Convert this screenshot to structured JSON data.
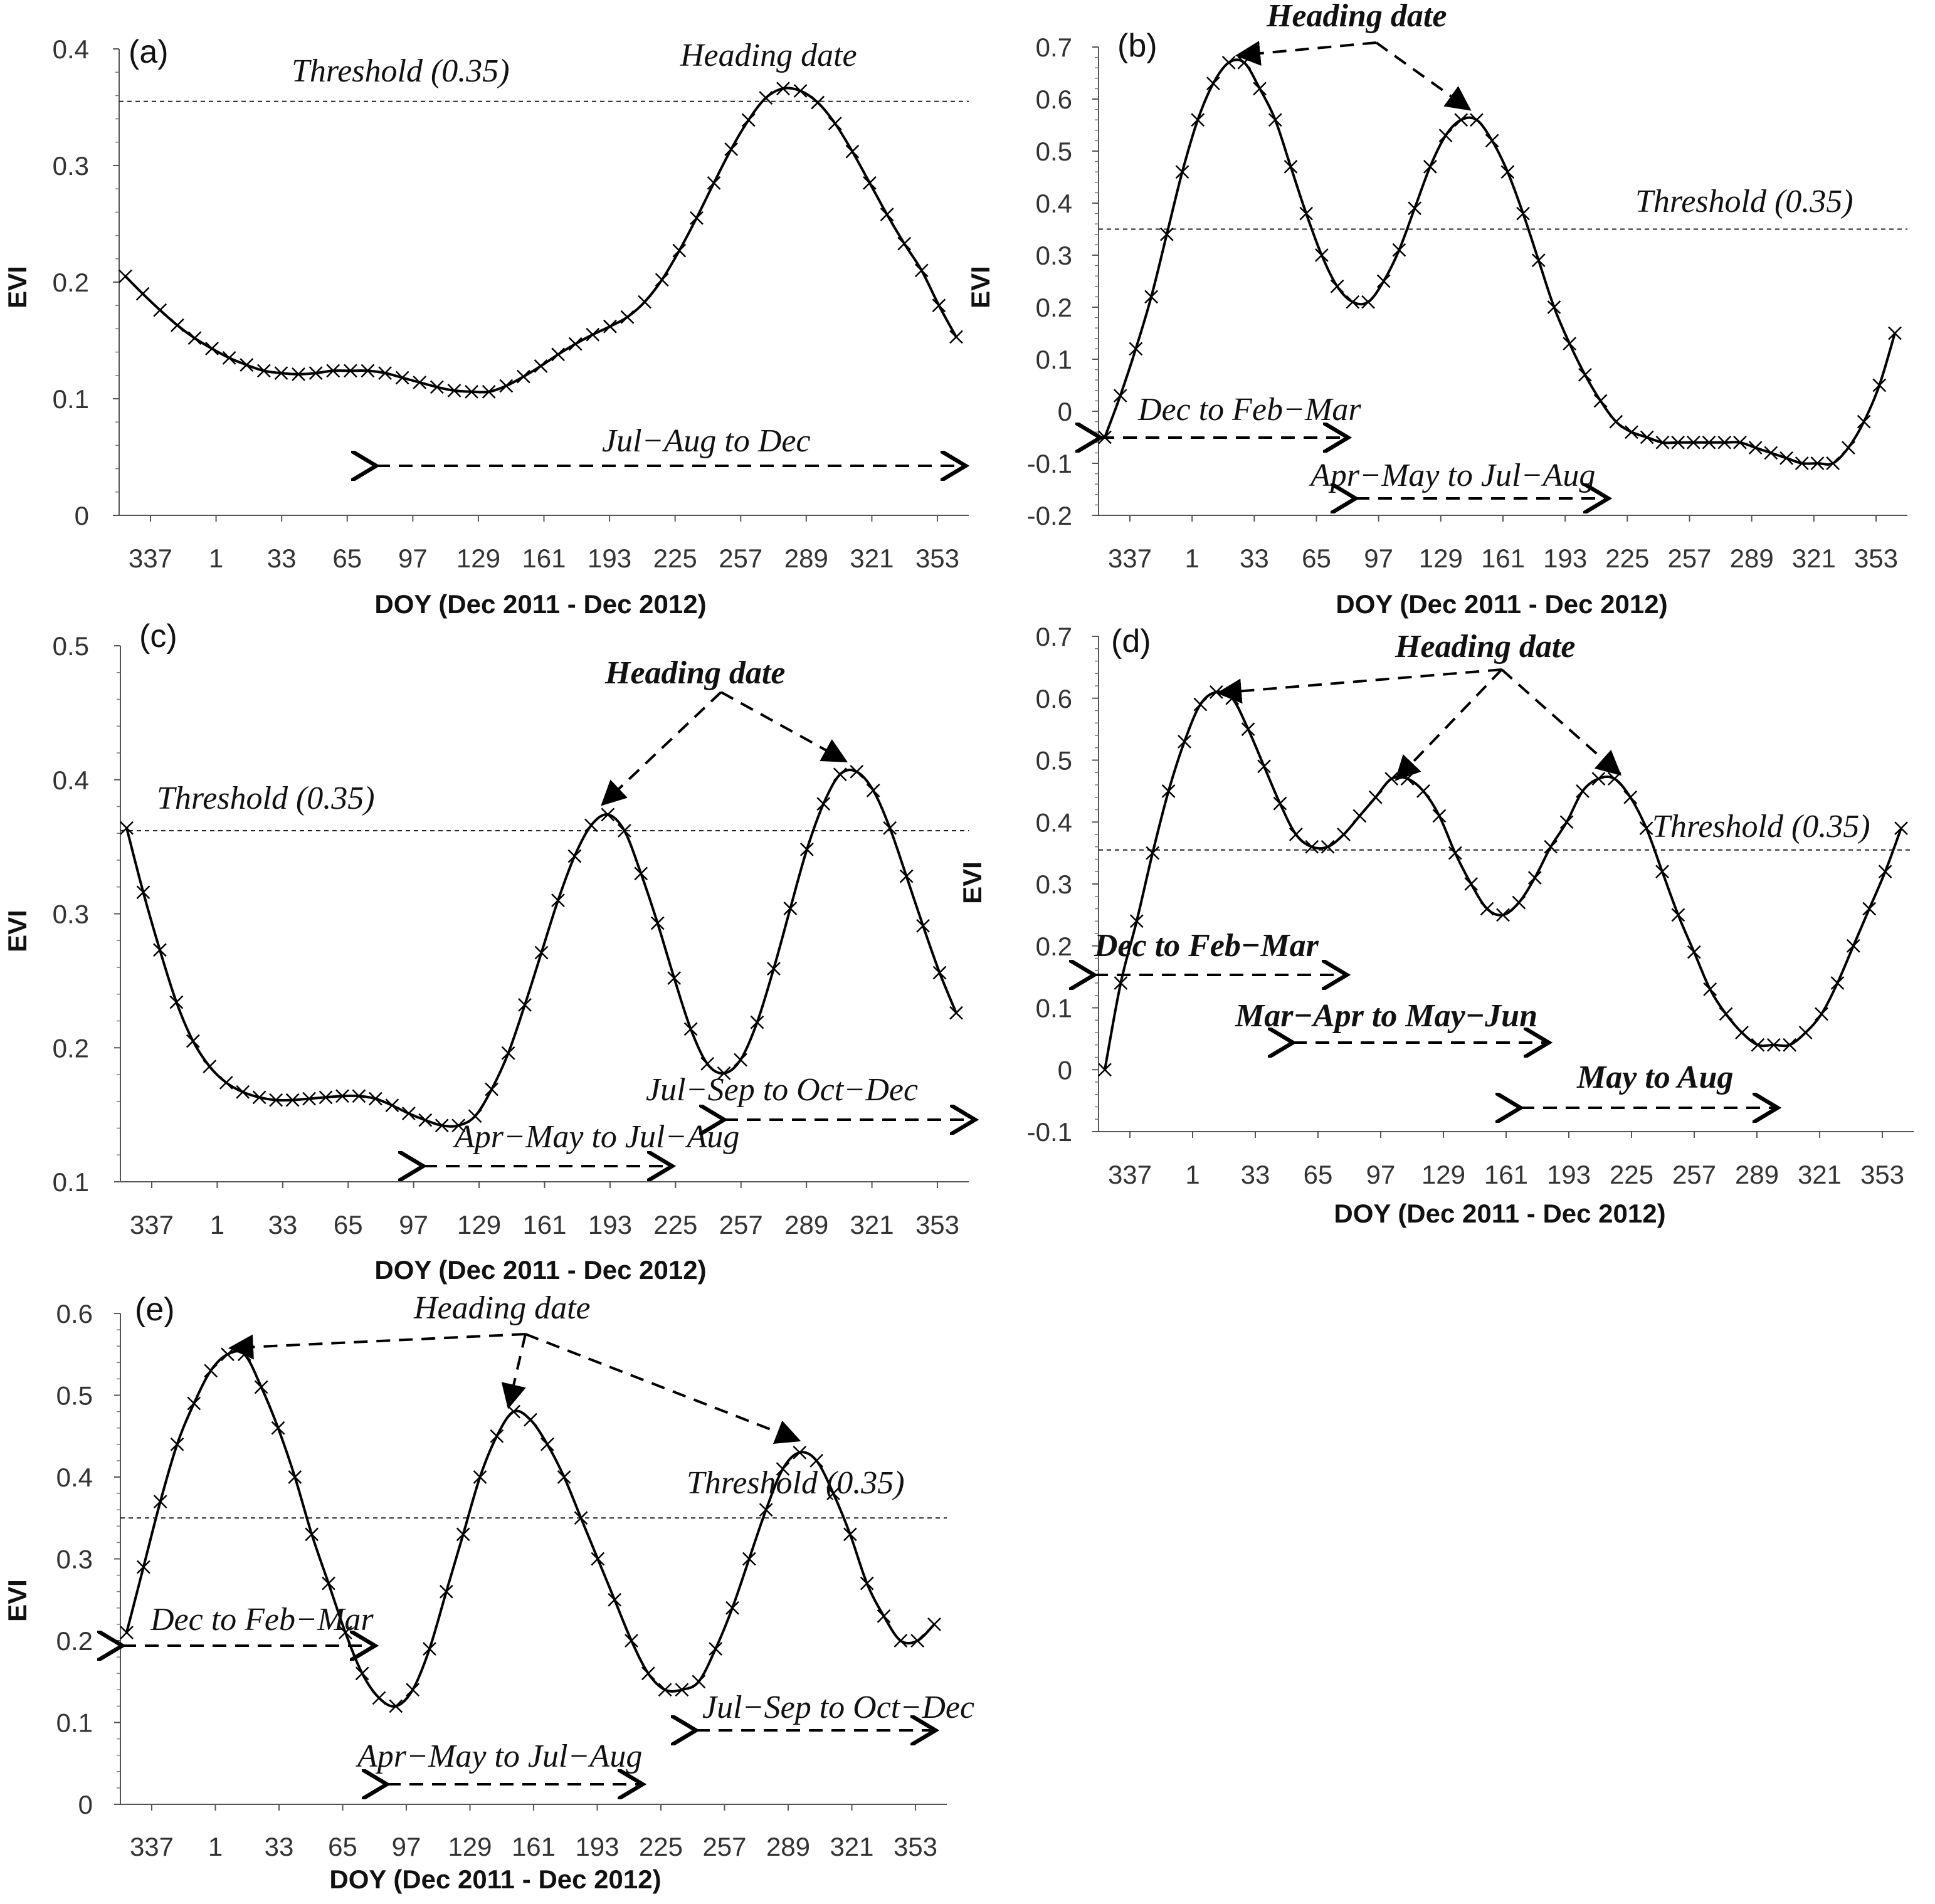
{
  "chart_data": [
    {
      "type": "line",
      "panel": "(a)",
      "xlabel": "DOY (Dec 2011 - Dec 2012)",
      "ylabel": "EVI",
      "x_ticks": [
        "337",
        "1",
        "33",
        "65",
        "97",
        "129",
        "161",
        "193",
        "225",
        "257",
        "289",
        "321",
        "353"
      ],
      "y_ticks": [
        "0",
        "0.1",
        "0.2",
        "0.3",
        "0.4"
      ],
      "ylim": [
        0,
        0.4
      ],
      "threshold": 0.355,
      "series": [
        {
          "name": "EVI",
          "marker": "x",
          "values": [
            0.205,
            0.19,
            0.176,
            0.163,
            0.152,
            0.143,
            0.135,
            0.129,
            0.124,
            0.122,
            0.121,
            0.122,
            0.124,
            0.124,
            0.124,
            0.122,
            0.118,
            0.114,
            0.11,
            0.107,
            0.106,
            0.106,
            0.111,
            0.119,
            0.128,
            0.138,
            0.147,
            0.155,
            0.162,
            0.17,
            0.183,
            0.202,
            0.227,
            0.255,
            0.285,
            0.314,
            0.339,
            0.358,
            0.366,
            0.364,
            0.354,
            0.336,
            0.312,
            0.285,
            0.258,
            0.233,
            0.21,
            0.18,
            0.153
          ]
        }
      ],
      "annotations": [
        {
          "text": "Threshold (0.35)"
        },
        {
          "text": "Heading date"
        },
        {
          "text": "Jul−Aug to Dec"
        }
      ]
    },
    {
      "type": "line",
      "panel": "(b)",
      "xlabel": "DOY (Dec 2011 - Dec 2012)",
      "ylabel": "EVI",
      "x_ticks": [
        "337",
        "1",
        "33",
        "65",
        "97",
        "129",
        "161",
        "193",
        "225",
        "257",
        "289",
        "321",
        "353"
      ],
      "y_ticks": [
        "-0.2",
        "-0.1",
        "0",
        "0.1",
        "0.2",
        "0.3",
        "0.4",
        "0.5",
        "0.6",
        "0.7"
      ],
      "ylim": [
        -0.2,
        0.7
      ],
      "threshold": 0.35,
      "series": [
        {
          "name": "EVI",
          "marker": "x",
          "values": [
            -0.05,
            0.03,
            0.12,
            0.22,
            0.34,
            0.46,
            0.56,
            0.63,
            0.67,
            0.67,
            0.62,
            0.56,
            0.47,
            0.38,
            0.3,
            0.24,
            0.21,
            0.21,
            0.25,
            0.31,
            0.39,
            0.47,
            0.53,
            0.56,
            0.56,
            0.52,
            0.46,
            0.38,
            0.29,
            0.2,
            0.13,
            0.07,
            0.02,
            -0.02,
            -0.04,
            -0.05,
            -0.06,
            -0.06,
            -0.06,
            -0.06,
            -0.06,
            -0.06,
            -0.07,
            -0.08,
            -0.09,
            -0.1,
            -0.1,
            -0.1,
            -0.07,
            -0.02,
            0.05,
            0.15
          ]
        }
      ],
      "annotations": [
        {
          "text": "Heading date"
        },
        {
          "text": "Threshold (0.35)"
        },
        {
          "text": "Dec to Feb−Mar"
        },
        {
          "text": "Apr−May to Jul−Aug"
        }
      ]
    },
    {
      "type": "line",
      "panel": "(c)",
      "xlabel": "DOY (Dec 2011 - Dec 2012)",
      "ylabel": "EVI",
      "x_ticks": [
        "337",
        "1",
        "33",
        "65",
        "97",
        "129",
        "161",
        "193",
        "225",
        "257",
        "289",
        "321",
        "353"
      ],
      "y_ticks": [
        "0.1",
        "0.2",
        "0.3",
        "0.4",
        "0.5"
      ],
      "ylim": [
        0.1,
        0.5
      ],
      "threshold": 0.362,
      "series": [
        {
          "name": "EVI",
          "marker": "x",
          "values": [
            0.364,
            0.316,
            0.273,
            0.234,
            0.205,
            0.186,
            0.174,
            0.167,
            0.163,
            0.161,
            0.161,
            0.162,
            0.163,
            0.164,
            0.164,
            0.162,
            0.157,
            0.151,
            0.146,
            0.142,
            0.142,
            0.149,
            0.169,
            0.196,
            0.232,
            0.271,
            0.31,
            0.343,
            0.366,
            0.374,
            0.362,
            0.33,
            0.293,
            0.252,
            0.214,
            0.188,
            0.181,
            0.191,
            0.219,
            0.259,
            0.304,
            0.348,
            0.382,
            0.404,
            0.406,
            0.392,
            0.364,
            0.328,
            0.291,
            0.256,
            0.226
          ]
        }
      ],
      "annotations": [
        {
          "text": "Heading date"
        },
        {
          "text": "Threshold (0.35)"
        },
        {
          "text": "Jul−Sep to Oct−Dec"
        },
        {
          "text": "Apr−May to Jul−Aug"
        }
      ]
    },
    {
      "type": "line",
      "panel": "(d)",
      "xlabel": "DOY (Dec 2011 - Dec 2012)",
      "ylabel": "EVI",
      "x_ticks": [
        "337",
        "1",
        "33",
        "65",
        "97",
        "129",
        "161",
        "193",
        "225",
        "257",
        "289",
        "321",
        "353"
      ],
      "y_ticks": [
        "-0.1",
        "0",
        "0.1",
        "0.2",
        "0.3",
        "0.4",
        "0.5",
        "0.6",
        "0.7"
      ],
      "ylim": [
        -0.1,
        0.7
      ],
      "threshold": 0.355,
      "series": [
        {
          "name": "EVI",
          "marker": "x",
          "values": [
            0.0,
            0.14,
            0.24,
            0.35,
            0.45,
            0.53,
            0.59,
            0.61,
            0.6,
            0.55,
            0.49,
            0.43,
            0.38,
            0.36,
            0.36,
            0.38,
            0.41,
            0.44,
            0.47,
            0.47,
            0.45,
            0.41,
            0.35,
            0.3,
            0.26,
            0.25,
            0.27,
            0.31,
            0.36,
            0.4,
            0.45,
            0.47,
            0.47,
            0.44,
            0.39,
            0.32,
            0.25,
            0.19,
            0.13,
            0.09,
            0.06,
            0.04,
            0.04,
            0.04,
            0.06,
            0.09,
            0.14,
            0.2,
            0.26,
            0.32,
            0.39
          ]
        }
      ],
      "annotations": [
        {
          "text": "Heading date"
        },
        {
          "text": "Threshold (0.35)"
        },
        {
          "text": "Dec to Feb−Mar"
        },
        {
          "text": "Mar−Apr to May−Jun"
        },
        {
          "text": "May to Aug"
        }
      ]
    },
    {
      "type": "line",
      "panel": "(e)",
      "xlabel": "DOY (Dec 2011 - Dec 2012)",
      "ylabel": "EVI",
      "x_ticks": [
        "337",
        "1",
        "33",
        "65",
        "97",
        "129",
        "161",
        "193",
        "225",
        "257",
        "289",
        "321",
        "353"
      ],
      "y_ticks": [
        "0",
        "0.1",
        "0.2",
        "0.3",
        "0.4",
        "0.5",
        "0.6"
      ],
      "ylim": [
        0,
        0.6
      ],
      "threshold": 0.35,
      "series": [
        {
          "name": "EVI",
          "marker": "x",
          "values": [
            0.21,
            0.29,
            0.37,
            0.44,
            0.49,
            0.53,
            0.55,
            0.55,
            0.51,
            0.46,
            0.4,
            0.33,
            0.27,
            0.21,
            0.16,
            0.13,
            0.12,
            0.14,
            0.19,
            0.26,
            0.33,
            0.4,
            0.45,
            0.48,
            0.47,
            0.44,
            0.4,
            0.35,
            0.3,
            0.25,
            0.2,
            0.16,
            0.14,
            0.14,
            0.15,
            0.19,
            0.24,
            0.3,
            0.36,
            0.41,
            0.43,
            0.42,
            0.38,
            0.33,
            0.27,
            0.23,
            0.2,
            0.2,
            0.22
          ]
        }
      ],
      "annotations": [
        {
          "text": "Heading date"
        },
        {
          "text": "Threshold (0.35)"
        },
        {
          "text": "Dec to Feb−Mar"
        },
        {
          "text": "Apr−May to Jul−Aug"
        },
        {
          "text": "Jul−Sep to Oct−Dec"
        }
      ]
    }
  ]
}
